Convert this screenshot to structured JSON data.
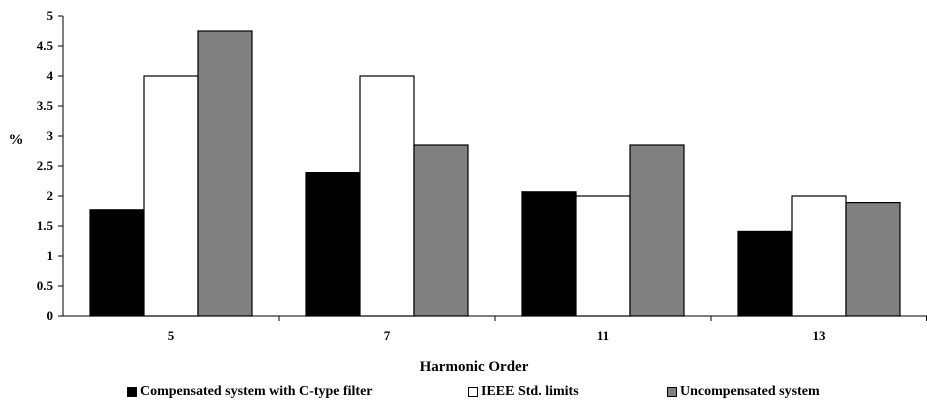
{
  "chart_data": {
    "type": "bar",
    "categories": [
      "5",
      "7",
      "11",
      "13"
    ],
    "series": [
      {
        "name": "Compensated system with C-type filter",
        "color": "#000000",
        "values": [
          1.77,
          2.39,
          2.07,
          1.41
        ]
      },
      {
        "name": "IEEE Std. limits",
        "color": "#ffffff",
        "values": [
          4.0,
          4.0,
          2.0,
          2.0
        ]
      },
      {
        "name": "Uncompensated system",
        "color": "#808080",
        "values": [
          4.75,
          2.85,
          2.85,
          1.89
        ]
      }
    ],
    "y_ticks": [
      "0",
      "0.5",
      "1",
      "1.5",
      "2",
      "2.5",
      "3",
      "3.5",
      "4",
      "4.5",
      "5"
    ],
    "ylim": [
      0,
      5
    ],
    "xlabel": "Harmonic Order",
    "ylabel": "%",
    "grid": false,
    "legend_position": "bottom"
  }
}
